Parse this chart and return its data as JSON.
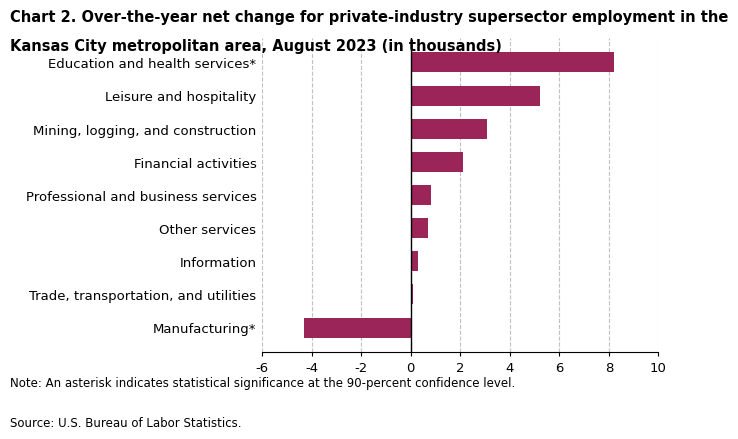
{
  "title_line1": "Chart 2. Over-the-year net change for private-industry supersector employment in the",
  "title_line2": "Kansas City metropolitan area, August 2023 (in thousands)",
  "categories": [
    "Education and health services*",
    "Leisure and hospitality",
    "Mining, logging, and construction",
    "Financial activities",
    "Professional and business services",
    "Other services",
    "Information",
    "Trade, transportation, and utilities",
    "Manufacturing*"
  ],
  "values": [
    8.2,
    5.2,
    3.1,
    2.1,
    0.8,
    0.7,
    0.3,
    0.1,
    -4.3
  ],
  "bar_color": "#9b2458",
  "xlim": [
    -6,
    10
  ],
  "xticks": [
    -6,
    -4,
    -2,
    0,
    2,
    4,
    6,
    8,
    10
  ],
  "note": "Note: An asterisk indicates statistical significance at the 90-percent confidence level.",
  "source": "Source: U.S. Bureau of Labor Statistics.",
  "background_color": "#ffffff",
  "grid_color": "#c0c0c0",
  "title_fontsize": 10.5,
  "tick_fontsize": 9.5,
  "label_fontsize": 9.5,
  "note_fontsize": 8.5
}
